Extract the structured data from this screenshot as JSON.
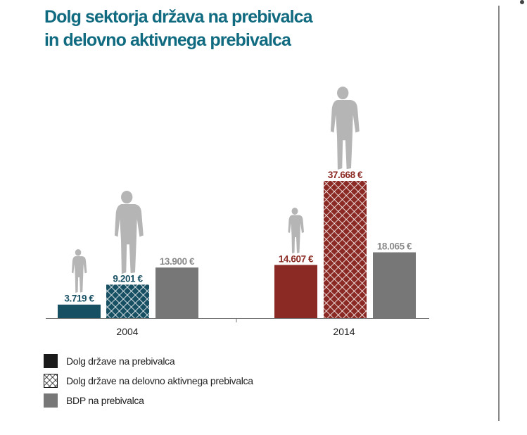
{
  "title_line1": "Dolg sektorja država na prebivalca",
  "title_line2": "in delovno aktivnega prebivalca",
  "colors": {
    "title": "#116b80",
    "debt_2004": "#174f63",
    "debt_2014": "#8b2a24",
    "gdp": "#777777",
    "figure": "#b5b5b5"
  },
  "legend": [
    {
      "label": "Dolg države na prebivalca",
      "style": "solid-dark"
    },
    {
      "label": "Dolg države na delovno aktivnega prebivalca",
      "style": "crosshatch"
    },
    {
      "label": "BDP na prebivalca",
      "style": "solid-gray"
    }
  ],
  "chart_data": {
    "type": "bar",
    "categories": [
      "2004",
      "2014"
    ],
    "series": [
      {
        "name": "Dolg države na prebivalca",
        "values": [
          3719,
          14607
        ],
        "labels": [
          "3.719 €",
          "14.607 €"
        ]
      },
      {
        "name": "Dolg države na delovno aktivnega prebivalca",
        "values": [
          9201,
          37668
        ],
        "labels": [
          "9.201 €",
          "37.668 €"
        ]
      },
      {
        "name": "BDP na prebivalca",
        "values": [
          13900,
          18065
        ],
        "labels": [
          "13.900 €",
          "18.065 €"
        ]
      }
    ],
    "ylim": [
      0,
      37668
    ],
    "grid": false,
    "legend_position": "bottom-left"
  }
}
